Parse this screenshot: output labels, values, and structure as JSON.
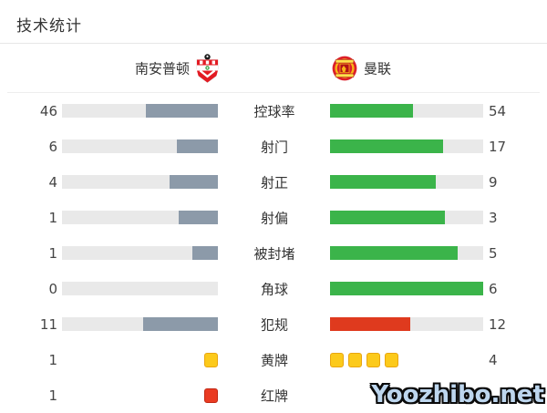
{
  "title": "技术统计",
  "teams": {
    "home": {
      "name": "南安普顿"
    },
    "away": {
      "name": "曼联"
    }
  },
  "stats": [
    {
      "label": "控球率",
      "home": 46,
      "away": 54,
      "type": "bar"
    },
    {
      "label": "射门",
      "home": 6,
      "away": 17,
      "type": "bar"
    },
    {
      "label": "射正",
      "home": 4,
      "away": 9,
      "type": "bar"
    },
    {
      "label": "射偏",
      "home": 1,
      "away": 3,
      "type": "bar"
    },
    {
      "label": "被封堵",
      "home": 1,
      "away": 5,
      "type": "bar"
    },
    {
      "label": "角球",
      "home": 0,
      "away": 6,
      "type": "bar"
    },
    {
      "label": "犯规",
      "home": 11,
      "away": 12,
      "type": "bar",
      "away_color": "red"
    },
    {
      "label": "黄牌",
      "home": 1,
      "away": 4,
      "type": "cards",
      "card_color": "yellow",
      "home_cards": 1,
      "away_cards": 4
    },
    {
      "label": "红牌",
      "home": 1,
      "away": null,
      "type": "cards",
      "card_color": "red",
      "home_cards": 1,
      "away_cards": 0
    }
  ],
  "colors": {
    "home_bar": "#8c9aa9",
    "green_bar": "#3bb44a",
    "red_bar": "#df3a1e",
    "track": "#e9e9e9",
    "yellow_card": "#fcca1b",
    "red_card": "#ea3b22"
  },
  "watermark": "Yoozhibo.net",
  "chart_data": {
    "type": "bar",
    "orientation": "horizontal-paired",
    "title": "技术统计",
    "categories": [
      "控球率",
      "射门",
      "射正",
      "射偏",
      "被封堵",
      "角球",
      "犯规",
      "黄牌",
      "红牌"
    ],
    "series": [
      {
        "name": "南安普顿",
        "values": [
          46,
          6,
          4,
          1,
          1,
          0,
          11,
          1,
          1
        ]
      },
      {
        "name": "曼联",
        "values": [
          54,
          17,
          9,
          3,
          5,
          6,
          12,
          4,
          null
        ]
      }
    ],
    "value_labels_shown": true,
    "fill_rule": "bar fill width = value / (home + away)",
    "legend_position": "top team header with crests",
    "grid": false
  }
}
